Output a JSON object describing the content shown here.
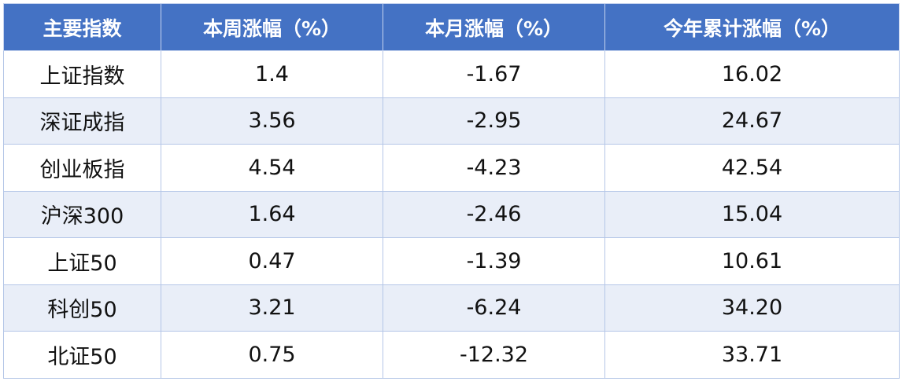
{
  "chart_data": {
    "type": "table",
    "columns": [
      "主要指数",
      "本周涨幅（%）",
      "本月涨幅（%）",
      "今年累计涨幅（%）"
    ],
    "rows": [
      [
        "上证指数",
        "1.4",
        "-1.67",
        "16.02"
      ],
      [
        "深证成指",
        "3.56",
        "-2.95",
        "24.67"
      ],
      [
        "创业板指",
        "4.54",
        "-4.23",
        "42.54"
      ],
      [
        "沪深300",
        "1.64",
        "-2.46",
        "15.04"
      ],
      [
        "上证50",
        "0.47",
        "-1.39",
        "10.61"
      ],
      [
        "科创50",
        "3.21",
        "-6.24",
        "34.20"
      ],
      [
        "北证50",
        "0.75",
        "-12.32",
        "33.71"
      ]
    ]
  },
  "colors": {
    "header_bg": "#4472c4",
    "stripe": "#e9eef8",
    "border": "#b4c6e7"
  }
}
